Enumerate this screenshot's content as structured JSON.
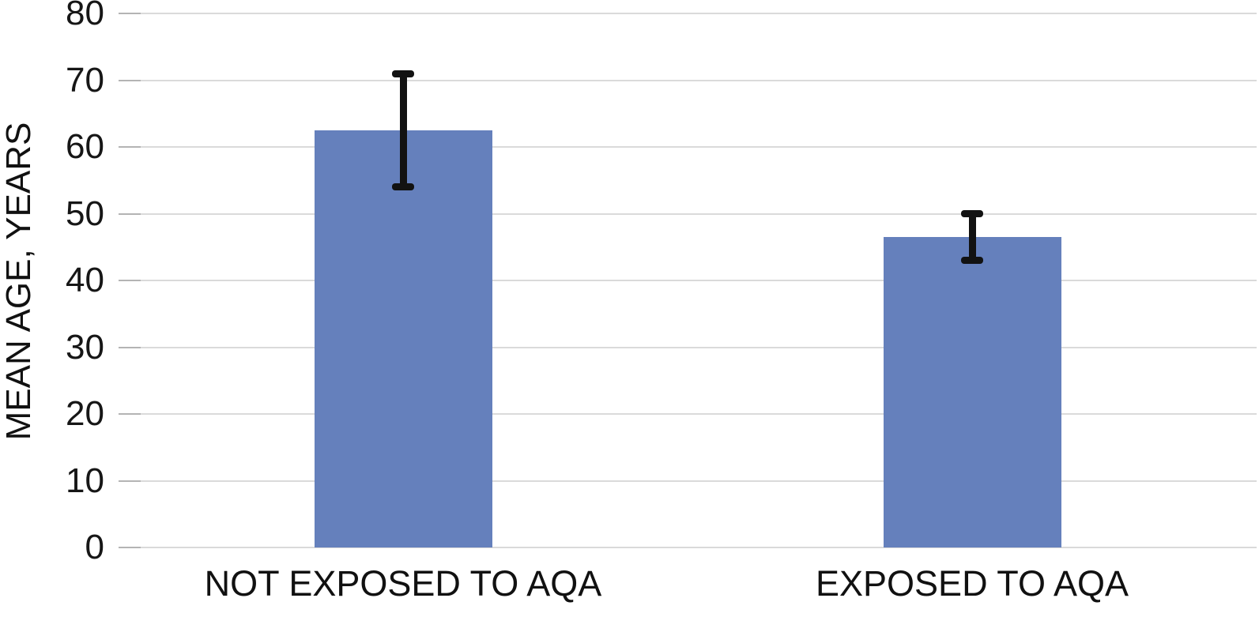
{
  "chart_data": {
    "type": "bar",
    "title": "",
    "xlabel": "",
    "ylabel": "MEAN AGE, YEARS",
    "categories": [
      "NOT EXPOSED TO AQA",
      "EXPOSED TO AQA"
    ],
    "values": [
      62.5,
      46.5
    ],
    "error_bars": {
      "upper": [
        71,
        50
      ],
      "lower": [
        54,
        43
      ]
    },
    "ylim": [
      0,
      80
    ],
    "yticks": [
      0,
      10,
      20,
      30,
      40,
      50,
      60,
      70,
      80
    ],
    "grid": true,
    "legend": "none",
    "bar_color": "#6580bc",
    "error_bar_color": "#121212",
    "gridline_color": "#dadada",
    "text_color": "#111111",
    "background_color": "#ffffff"
  }
}
